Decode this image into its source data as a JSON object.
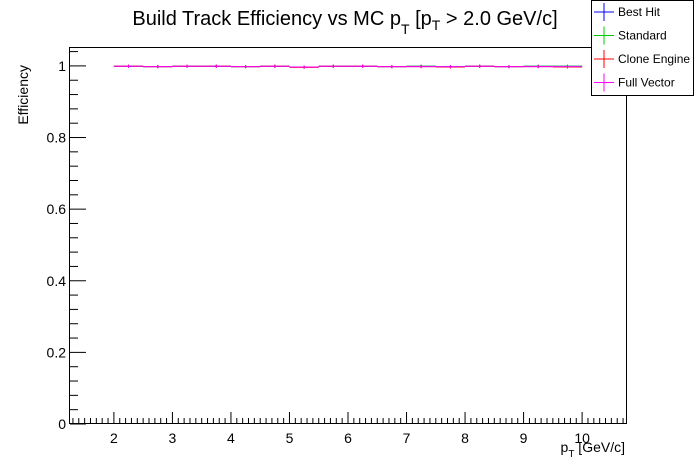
{
  "chart_data": {
    "type": "line",
    "title": "Build Track Efficiency vs MC p_T [p_T > 2.0 GeV/c]",
    "title_parts": {
      "prefix": "Build Track Efficiency vs MC p",
      "sub1": "T",
      "mid": " [p",
      "sub2": "T",
      "suffix": " > 2.0 GeV/c]"
    },
    "xlabel_parts": {
      "main": "p",
      "sub": "T",
      "rest": " [GeV/c]"
    },
    "ylabel": "Efficiency",
    "xlim": [
      1.25,
      10.75
    ],
    "ylim": [
      0,
      1.05
    ],
    "x_ticks": [
      "2",
      "3",
      "4",
      "5",
      "6",
      "7",
      "8",
      "9",
      "10"
    ],
    "y_ticks": [
      "0",
      "0.2",
      "0.4",
      "0.6",
      "0.8",
      "1"
    ],
    "grid": false,
    "legend_placement": "top-right",
    "x": [
      2.25,
      2.75,
      3.25,
      3.75,
      4.25,
      4.75,
      5.25,
      5.75,
      6.25,
      6.75,
      7.25,
      7.75,
      8.25,
      8.75,
      9.25,
      9.75
    ],
    "series": [
      {
        "name": "Best Hit",
        "color": "#0000ff",
        "values": [
          0.999,
          0.998,
          0.999,
          0.999,
          0.998,
          0.999,
          0.997,
          0.999,
          0.999,
          0.998,
          0.999,
          0.998,
          0.999,
          0.998,
          0.999,
          0.999
        ]
      },
      {
        "name": "Standard",
        "color": "#00cc00",
        "values": [
          0.999,
          0.998,
          0.999,
          0.999,
          0.998,
          0.999,
          0.997,
          0.999,
          0.999,
          0.998,
          0.999,
          0.998,
          0.999,
          0.998,
          0.999,
          0.999
        ]
      },
      {
        "name": "Clone Engine",
        "color": "#ff0000",
        "values": [
          0.999,
          0.998,
          0.999,
          0.999,
          0.998,
          0.999,
          0.996,
          0.999,
          0.999,
          0.998,
          0.998,
          0.997,
          0.999,
          0.998,
          0.998,
          0.997
        ]
      },
      {
        "name": "Full Vector",
        "color": "#ff00ff",
        "values": [
          0.999,
          0.998,
          0.999,
          0.999,
          0.998,
          0.999,
          0.997,
          0.999,
          0.999,
          0.998,
          0.998,
          0.998,
          0.999,
          0.998,
          0.998,
          0.998
        ]
      }
    ]
  }
}
